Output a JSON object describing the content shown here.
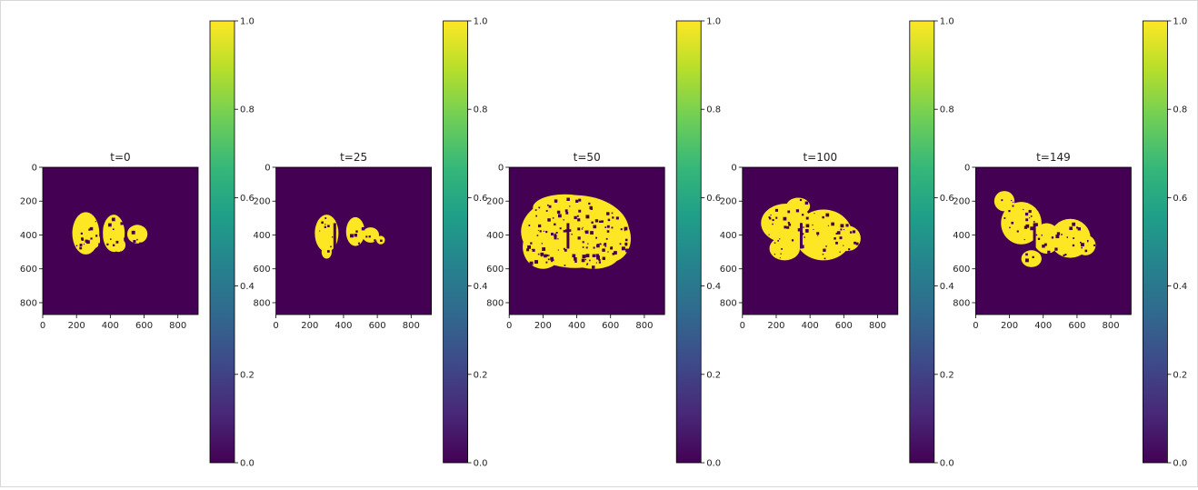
{
  "chart_data": [
    {
      "type": "heatmap",
      "title": "t=0",
      "xticks": [
        0,
        200,
        400,
        600,
        800
      ],
      "yticks": [
        0,
        200,
        400,
        600,
        800
      ],
      "xlim": [
        0,
        920
      ],
      "ylim": [
        870,
        0
      ],
      "colorbar": {
        "colormap": "viridis",
        "range": [
          0.0,
          1.0
        ],
        "ticks": [
          "0.0",
          "0.2",
          "0.4",
          "0.6",
          "0.8",
          "1.0"
        ]
      },
      "blobs": [
        [
          255,
          390,
          80,
          125
        ],
        [
          420,
          390,
          65,
          110
        ],
        [
          560,
          395,
          60,
          55
        ],
        [
          235,
          350,
          40,
          55
        ],
        [
          300,
          430,
          40,
          50
        ],
        [
          450,
          460,
          40,
          40
        ]
      ]
    },
    {
      "type": "heatmap",
      "title": "t=25",
      "xticks": [
        0,
        200,
        400,
        600,
        800
      ],
      "yticks": [
        0,
        200,
        400,
        600,
        800
      ],
      "xlim": [
        0,
        920
      ],
      "ylim": [
        870,
        0
      ],
      "colorbar": {
        "colormap": "viridis",
        "range": [
          0.0,
          1.0
        ],
        "ticks": [
          "0.0",
          "0.2",
          "0.4",
          "0.6",
          "0.8",
          "1.0"
        ]
      },
      "blobs": [
        [
          300,
          390,
          70,
          110
        ],
        [
          470,
          380,
          55,
          85
        ],
        [
          560,
          400,
          50,
          45
        ],
        [
          300,
          500,
          30,
          40
        ],
        [
          620,
          430,
          25,
          25
        ]
      ]
    },
    {
      "type": "heatmap",
      "title": "t=50",
      "xticks": [
        0,
        200,
        400,
        600,
        800
      ],
      "yticks": [
        0,
        200,
        400,
        600,
        800
      ],
      "xlim": [
        0,
        920
      ],
      "ylim": [
        870,
        0
      ],
      "colorbar": {
        "colormap": "viridis",
        "range": [
          0.0,
          1.0
        ],
        "ticks": [
          "0.0",
          "0.2",
          "0.4",
          "0.6",
          "0.8",
          "1.0"
        ]
      },
      "blobs": [
        [
          390,
          380,
          320,
          215
        ],
        [
          600,
          420,
          120,
          140
        ],
        [
          200,
          470,
          120,
          130
        ],
        [
          330,
          240,
          190,
          80
        ],
        [
          500,
          520,
          150,
          80
        ]
      ]
    },
    {
      "type": "heatmap",
      "title": "t=100",
      "xticks": [
        0,
        200,
        400,
        600,
        800
      ],
      "yticks": [
        0,
        200,
        400,
        600,
        800
      ],
      "xlim": [
        0,
        920
      ],
      "ylim": [
        870,
        0
      ],
      "colorbar": {
        "colormap": "viridis",
        "range": [
          0.0,
          1.0
        ],
        "ticks": [
          "0.0",
          "0.2",
          "0.4",
          "0.6",
          "0.8",
          "1.0"
        ]
      },
      "blobs": [
        [
          260,
          330,
          150,
          115
        ],
        [
          480,
          400,
          170,
          150
        ],
        [
          620,
          420,
          80,
          75
        ],
        [
          250,
          480,
          90,
          70
        ],
        [
          330,
          230,
          70,
          50
        ]
      ]
    },
    {
      "type": "heatmap",
      "title": "t=149",
      "xticks": [
        0,
        200,
        400,
        600,
        800
      ],
      "yticks": [
        0,
        200,
        400,
        600,
        800
      ],
      "xlim": [
        0,
        920
      ],
      "ylim": [
        870,
        0
      ],
      "colorbar": {
        "colormap": "viridis",
        "range": [
          0.0,
          1.0
        ],
        "ticks": [
          "0.0",
          "0.2",
          "0.4",
          "0.6",
          "0.8",
          "1.0"
        ]
      },
      "blobs": [
        [
          270,
          330,
          120,
          125
        ],
        [
          560,
          420,
          120,
          115
        ],
        [
          170,
          200,
          60,
          60
        ],
        [
          420,
          420,
          80,
          90
        ],
        [
          330,
          540,
          60,
          50
        ],
        [
          650,
          460,
          60,
          60
        ]
      ]
    }
  ],
  "colors": {
    "background": "#440154",
    "foreground": "#fde725",
    "colormap_stops": [
      "#440154",
      "#482878",
      "#3e4989",
      "#31688e",
      "#26828e",
      "#1f9e89",
      "#35b779",
      "#6ece58",
      "#b5de2b",
      "#fde725"
    ]
  }
}
